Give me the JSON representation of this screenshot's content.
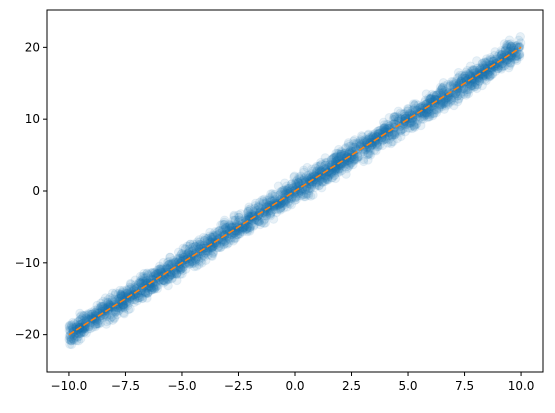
{
  "chart_data": {
    "type": "scatter",
    "title": "",
    "xlabel": "",
    "ylabel": "",
    "xlim": [
      -10.97,
      10.97
    ],
    "ylim": [
      -25.2,
      25.2
    ],
    "grid": false,
    "x_ticks": [
      -10.0,
      -7.5,
      -5.0,
      -2.5,
      0.0,
      2.5,
      5.0,
      7.5,
      10.0
    ],
    "x_tick_labels": [
      "−10.0",
      "−7.5",
      "−5.0",
      "−2.5",
      "0.0",
      "2.5",
      "5.0",
      "7.5",
      "10.0"
    ],
    "y_ticks": [
      -20,
      -10,
      0,
      10,
      20
    ],
    "y_tick_labels": [
      "−20",
      "−10",
      "0",
      "10",
      "20"
    ],
    "series": [
      {
        "kind": "scatter",
        "color": "#1f77b4",
        "alpha": 0.1,
        "x_range": [
          -10.0,
          10.0
        ],
        "slope": 2.0,
        "intercept": 0.0,
        "noise_half_width": 2.5
      },
      {
        "kind": "line",
        "style": "dashed",
        "color": "#ff7f0e",
        "x": [
          -10.0,
          10.0
        ],
        "y": [
          -20.0,
          20.0
        ]
      }
    ]
  }
}
